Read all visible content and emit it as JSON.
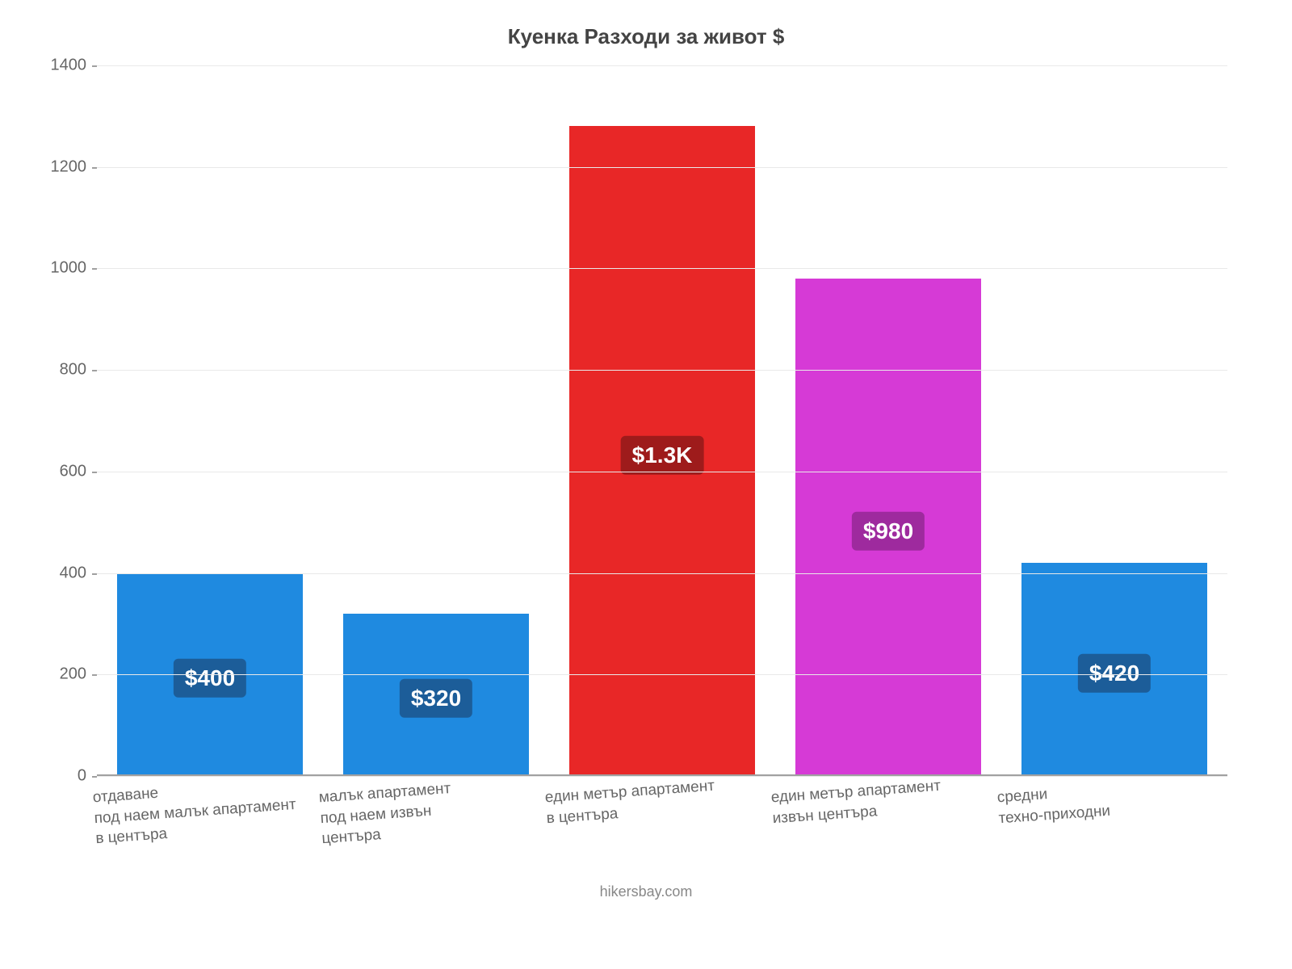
{
  "chart": {
    "type": "bar",
    "title": "Куенка Разходи за живот $",
    "title_fontsize": 26,
    "title_color": "#444444",
    "background_color": "#ffffff",
    "grid_color": "#e9e9e9",
    "axis_color": "#a0a0a0",
    "ylim": [
      0,
      1400
    ],
    "ytick_step": 200,
    "yticks": [
      0,
      200,
      400,
      600,
      800,
      1000,
      1200,
      1400
    ],
    "bar_width": 0.82,
    "label_color": "#666666",
    "label_fontsize": 20,
    "xlabel_fontsize": 19,
    "value_badge_fontsize": 28,
    "categories": [
      "отдаване под наем малък апартамент в центъра",
      "малък апартамент под наем извън центъра",
      "един метър апартамент в центъра",
      "един метър апартамент извън центъра",
      "средни техно-приходни"
    ],
    "category_lines": [
      [
        "отдаване",
        "под наем малък апартамент",
        "в центъра"
      ],
      [
        "малък апартамент",
        "под наем извън",
        "центъра"
      ],
      [
        "един метър апартамент",
        "в центъра"
      ],
      [
        "един метър апартамент",
        "извън центъра"
      ],
      [
        "средни",
        "техно-приходни"
      ]
    ],
    "values": [
      400,
      320,
      1280,
      980,
      420
    ],
    "value_labels": [
      "$400",
      "$320",
      "$1.3K",
      "$980",
      "$420"
    ],
    "bar_colors": [
      "#1f8ae0",
      "#1f8ae0",
      "#e82727",
      "#d63ad6",
      "#1f8ae0"
    ],
    "badge_colors": [
      "#1c5d99",
      "#1c5d99",
      "#9e1b1b",
      "#9e2a9e",
      "#1c5d99"
    ],
    "source": "hikersbay.com"
  }
}
